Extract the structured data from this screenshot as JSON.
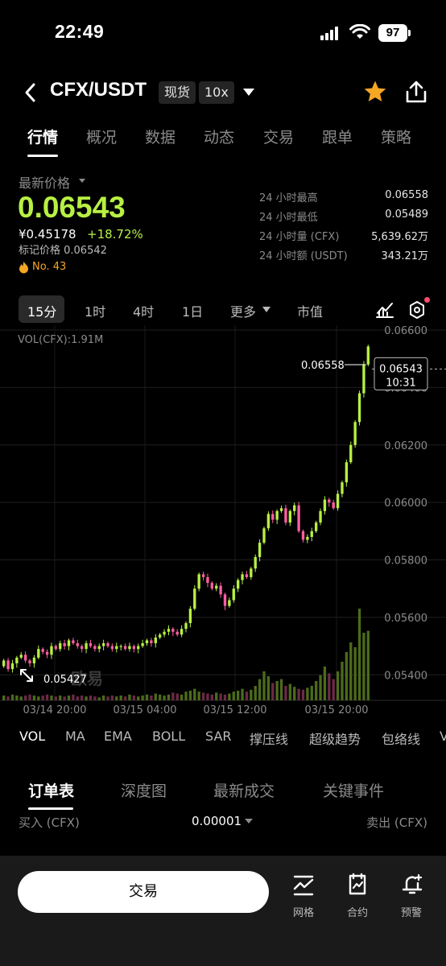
{
  "status_bar": {
    "time": "22:49",
    "battery": "97"
  },
  "header": {
    "pair": "CFX/USDT",
    "market_type": "现货",
    "leverage": "10x"
  },
  "tabs": [
    {
      "label": "行情",
      "active": true
    },
    {
      "label": "概况"
    },
    {
      "label": "数据"
    },
    {
      "label": "动态"
    },
    {
      "label": "交易"
    },
    {
      "label": "跟单"
    },
    {
      "label": "策略"
    }
  ],
  "price": {
    "label": "最新价格",
    "last": "0.06543",
    "cny": "¥0.45178",
    "change_pct": "+18.72%",
    "mark_price": "标记价格 0.06542",
    "rank": "No. 43"
  },
  "stats": [
    {
      "label": "24 小时最高",
      "value": "0.06558"
    },
    {
      "label": "24 小时最低",
      "value": "0.05489"
    },
    {
      "label": "24 小时量 (CFX)",
      "value": "5,639.62万"
    },
    {
      "label": "24 小时额 (USDT)",
      "value": "343.21万"
    }
  ],
  "timeframes": [
    "15分",
    "1时",
    "4时",
    "1日",
    "更多",
    "市值"
  ],
  "chart_data": {
    "type": "candlestick",
    "vol_label": "VOL(CFX):1.91M",
    "y_ticks": [
      "0.06600",
      "0.06400",
      "0.06200",
      "0.06000",
      "0.05800",
      "0.05600",
      "0.05400"
    ],
    "ylim": [
      0.053,
      0.066
    ],
    "x_ticks": [
      "03/14 20:00",
      "03/15 04:00",
      "03/15 12:00",
      "03/15 20:00"
    ],
    "high_marker": "0.06558",
    "low_marker": "0.05427",
    "current_price": "0.06543",
    "countdown": "10:31",
    "watermark": "欧易",
    "close": [
      0.0545,
      0.0542,
      0.0544,
      0.0546,
      0.0547,
      0.0545,
      0.0544,
      0.0546,
      0.0549,
      0.0548,
      0.0547,
      0.055,
      0.0549,
      0.0551,
      0.055,
      0.0552,
      0.0551,
      0.055,
      0.0549,
      0.0551,
      0.055,
      0.0549,
      0.055,
      0.0551,
      0.055,
      0.0549,
      0.055,
      0.055,
      0.0549,
      0.055,
      0.0549,
      0.055,
      0.0551,
      0.0552,
      0.0551,
      0.0553,
      0.0554,
      0.0555,
      0.0556,
      0.0555,
      0.0554,
      0.0556,
      0.0558,
      0.0563,
      0.057,
      0.0575,
      0.0574,
      0.0572,
      0.057,
      0.0571,
      0.0568,
      0.0564,
      0.0566,
      0.057,
      0.0573,
      0.0575,
      0.0574,
      0.0577,
      0.0581,
      0.0586,
      0.0591,
      0.0596,
      0.0594,
      0.0597,
      0.0598,
      0.0593,
      0.0597,
      0.0599,
      0.059,
      0.0587,
      0.0588,
      0.059,
      0.0593,
      0.0597,
      0.0601,
      0.06,
      0.0598,
      0.0603,
      0.0607,
      0.0614,
      0.062,
      0.0628,
      0.0638,
      0.0648,
      0.06543
    ],
    "volume": [
      0.05,
      0.04,
      0.06,
      0.05,
      0.04,
      0.05,
      0.06,
      0.05,
      0.04,
      0.05,
      0.06,
      0.05,
      0.04,
      0.05,
      0.04,
      0.05,
      0.06,
      0.04,
      0.05,
      0.04,
      0.05,
      0.04,
      0.03,
      0.05,
      0.04,
      0.05,
      0.04,
      0.05,
      0.04,
      0.06,
      0.05,
      0.04,
      0.05,
      0.06,
      0.05,
      0.07,
      0.06,
      0.05,
      0.06,
      0.08,
      0.07,
      0.06,
      0.09,
      0.1,
      0.12,
      0.09,
      0.08,
      0.07,
      0.06,
      0.08,
      0.07,
      0.06,
      0.07,
      0.09,
      0.1,
      0.12,
      0.09,
      0.11,
      0.15,
      0.22,
      0.3,
      0.25,
      0.18,
      0.2,
      0.22,
      0.15,
      0.17,
      0.14,
      0.12,
      0.11,
      0.13,
      0.15,
      0.2,
      0.26,
      0.35,
      0.28,
      0.22,
      0.3,
      0.4,
      0.5,
      0.6,
      0.55,
      0.95,
      0.7,
      0.72
    ]
  },
  "indicators": [
    "VOL",
    "MA",
    "EMA",
    "BOLL",
    "SAR",
    "撑压线",
    "超级趋势",
    "包络线",
    "V"
  ],
  "order_tabs": [
    "订单表",
    "深度图",
    "最新成交",
    "关键事件"
  ],
  "order_book": {
    "buy_header": "买入 (CFX)",
    "step": "0.00001",
    "sell_header": "卖出 (CFX)"
  },
  "bottom_bar": {
    "trade_label": "交易",
    "grid_label": "网格",
    "contract_label": "合约",
    "alert_label": "预警"
  },
  "colors": {
    "up": "#b7f043",
    "down": "#ff5fa2",
    "rank": "#f5a623"
  }
}
